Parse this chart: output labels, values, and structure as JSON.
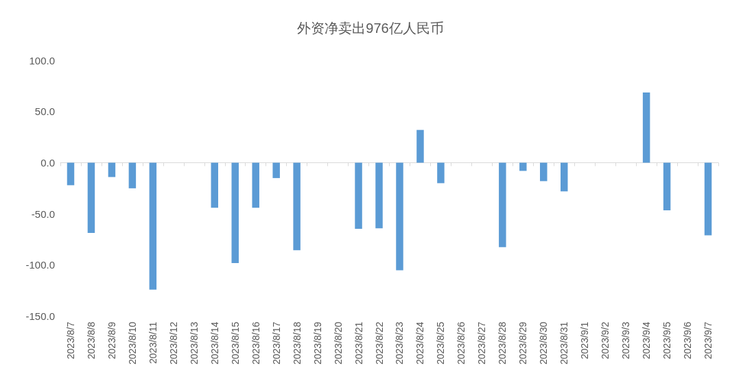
{
  "chart_data": {
    "type": "bar",
    "title": "外资净卖出976亿人民币",
    "categories": [
      "2023/8/7",
      "2023/8/8",
      "2023/8/9",
      "2023/8/10",
      "2023/8/11",
      "2023/8/12",
      "2023/8/13",
      "2023/8/14",
      "2023/8/15",
      "2023/8/16",
      "2023/8/17",
      "2023/8/18",
      "2023/8/19",
      "2023/8/20",
      "2023/8/21",
      "2023/8/22",
      "2023/8/23",
      "2023/8/24",
      "2023/8/25",
      "2023/8/26",
      "2023/8/27",
      "2023/8/28",
      "2023/8/29",
      "2023/8/30",
      "2023/8/31",
      "2023/9/1",
      "2023/9/2",
      "2023/9/3",
      "2023/9/4",
      "2023/9/5",
      "2023/9/6",
      "2023/9/7"
    ],
    "values": [
      -22,
      -68.5,
      -14,
      -25,
      -124,
      0,
      0,
      -44,
      -98,
      -44,
      -15,
      -85.5,
      0,
      0,
      -64.5,
      -64,
      -105,
      32,
      -20,
      0,
      0,
      -82.5,
      -8,
      -18,
      -28,
      0,
      0,
      0,
      68.5,
      -46.5,
      0,
      -71
    ],
    "color": "#5b9bd5",
    "ylim": [
      -150,
      100
    ],
    "yticks": [
      {
        "value": -150,
        "label": "-150.0"
      },
      {
        "value": -100,
        "label": "-100.0"
      },
      {
        "value": -50,
        "label": "-50.0"
      },
      {
        "value": 0,
        "label": "0.0"
      },
      {
        "value": 50,
        "label": "50.0"
      },
      {
        "value": 100,
        "label": "100.0"
      }
    ]
  }
}
